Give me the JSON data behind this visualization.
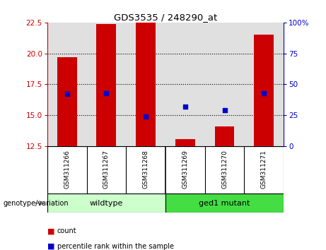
{
  "title": "GDS3535 / 248290_at",
  "samples": [
    "GSM311266",
    "GSM311267",
    "GSM311268",
    "GSM311269",
    "GSM311270",
    "GSM311271"
  ],
  "count_values": [
    19.7,
    22.4,
    22.5,
    13.1,
    14.1,
    21.5
  ],
  "percentile_values": [
    42,
    43,
    24,
    32,
    29,
    43
  ],
  "ylim_left": [
    12.5,
    22.5
  ],
  "yticks_left": [
    12.5,
    15.0,
    17.5,
    20.0,
    22.5
  ],
  "grid_lines": [
    15.0,
    17.5,
    20.0
  ],
  "ylim_right": [
    0,
    100
  ],
  "yticks_right": [
    0,
    25,
    50,
    75,
    100
  ],
  "bar_color": "#cc0000",
  "dot_color": "#0000cc",
  "group1_label": "wildtype",
  "group1_color": "#ccffcc",
  "group2_label": "ged1 mutant",
  "group2_color": "#44dd44",
  "group_label": "genotype/variation",
  "legend_count": "count",
  "legend_percentile": "percentile rank within the sample",
  "left_tick_color": "#cc0000",
  "right_tick_color": "#0000cc",
  "plot_bg_color": "#e0e0e0",
  "sample_bg_color": "#c8c8c8",
  "bar_width": 0.5,
  "dot_size": 25
}
